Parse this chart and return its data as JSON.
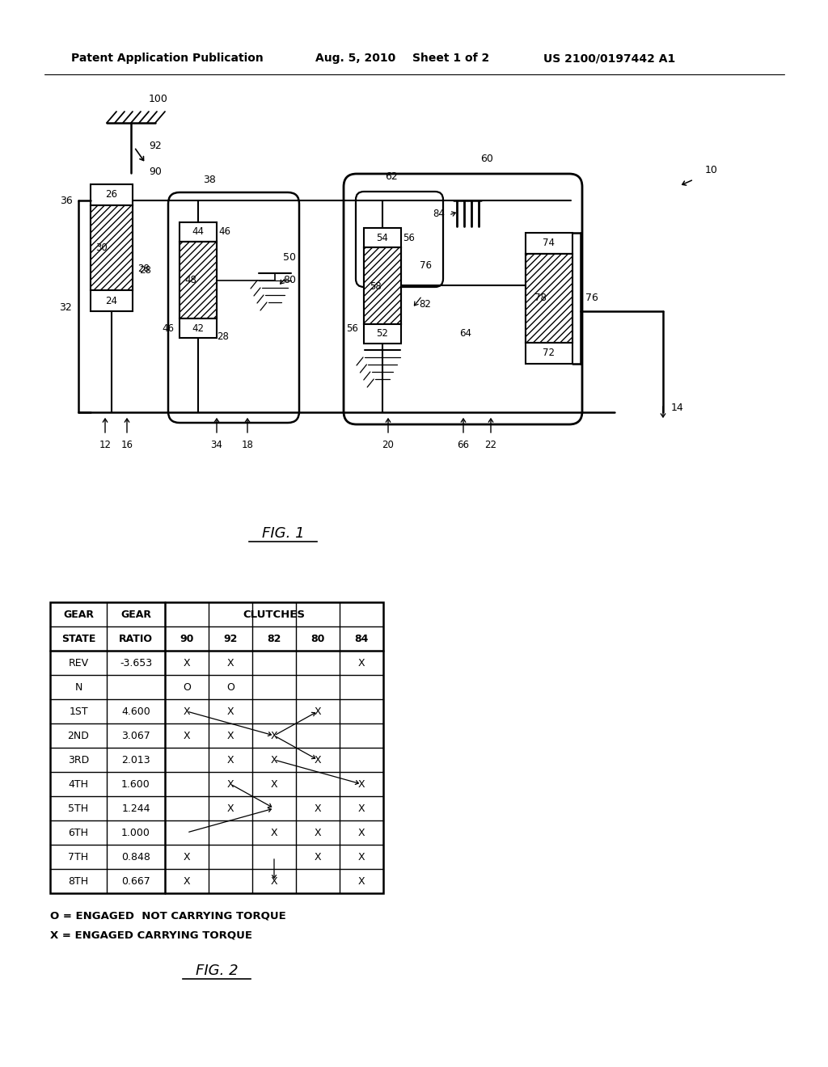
{
  "header_text": "Patent Application Publication",
  "header_date": "Aug. 5, 2010",
  "header_sheet": "Sheet 1 of 2",
  "header_patent": "US 2100/0197442 A1",
  "fig1_label": "FIG. 1",
  "fig2_label": "FIG. 2",
  "fig2_note1": "O = ENGAGED  NOT CARRYING TORQUE",
  "fig2_note2": "X = ENGAGED CARRYING TORQUE",
  "clutches_header": "CLUTCHES",
  "table_rows": [
    [
      "REV",
      "-3.653",
      "X",
      "X",
      "",
      "",
      "X"
    ],
    [
      "N",
      "",
      "O",
      "O",
      "",
      "",
      ""
    ],
    [
      "1ST",
      "4.600",
      "X",
      "X",
      "",
      "X",
      ""
    ],
    [
      "2ND",
      "3.067",
      "X",
      "X",
      "X",
      "",
      ""
    ],
    [
      "3RD",
      "2.013",
      "",
      "X",
      "X",
      "X",
      ""
    ],
    [
      "4TH",
      "1.600",
      "",
      "X",
      "X",
      "",
      "X"
    ],
    [
      "5TH",
      "1.244",
      "",
      "X",
      "",
      "X",
      "X"
    ],
    [
      "6TH",
      "1.000",
      "",
      "",
      "X",
      "X",
      "X"
    ],
    [
      "7TH",
      "0.848",
      "X",
      "",
      "",
      "X",
      "X"
    ],
    [
      "8TH",
      "0.667",
      "X",
      "",
      "X",
      "",
      "X"
    ]
  ],
  "bg_color": "#ffffff",
  "line_color": "#000000",
  "text_color": "#000000"
}
